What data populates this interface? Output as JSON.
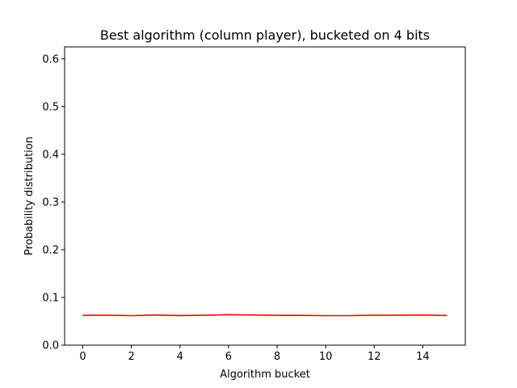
{
  "chart_data": {
    "type": "line",
    "title": "Best algorithm (column player), bucketed on 4 bits",
    "xlabel": "Algorithm bucket",
    "ylabel": "Probability distribution",
    "xlim": [
      -0.75,
      15.75
    ],
    "ylim": [
      0.0,
      0.625
    ],
    "xticks": [
      0,
      2,
      4,
      6,
      8,
      10,
      12,
      14
    ],
    "xtick_labels": [
      "0",
      "2",
      "4",
      "6",
      "8",
      "10",
      "12",
      "14"
    ],
    "yticks": [
      0.0,
      0.1,
      0.2,
      0.3,
      0.4,
      0.5,
      0.6
    ],
    "ytick_labels": [
      "0.0",
      "0.1",
      "0.2",
      "0.3",
      "0.4",
      "0.5",
      "0.6"
    ],
    "grid": false,
    "series": [
      {
        "color": "#ff0000",
        "x": [
          0,
          1,
          2,
          3,
          4,
          5,
          6,
          7,
          8,
          9,
          10,
          11,
          12,
          13,
          14,
          15
        ],
        "values": [
          0.0625,
          0.0628,
          0.0618,
          0.0632,
          0.062,
          0.0628,
          0.0638,
          0.0632,
          0.0625,
          0.0624,
          0.0618,
          0.0618,
          0.0628,
          0.0628,
          0.0632,
          0.0622
        ]
      }
    ]
  }
}
